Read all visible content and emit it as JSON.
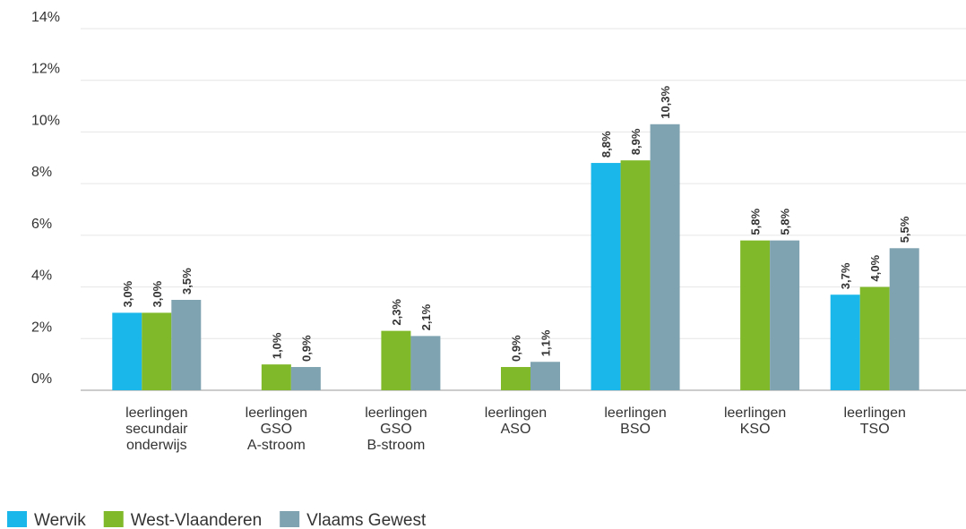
{
  "chart_data": {
    "type": "bar",
    "categories": [
      "leerlingen secundair onderwijs",
      "leerlingen GSO A-stroom",
      "leerlingen GSO B-stroom",
      "leerlingen ASO",
      "leerlingen BSO",
      "leerlingen KSO",
      "leerlingen TSO"
    ],
    "series": [
      {
        "name": "Wervik",
        "color": "#1ab7ea",
        "values": [
          3.0,
          null,
          null,
          null,
          8.8,
          null,
          3.7
        ],
        "value_labels": [
          "3,0%",
          null,
          null,
          null,
          "8,8%",
          null,
          "3,7%"
        ]
      },
      {
        "name": "West-Vlaanderen",
        "color": "#80b929",
        "values": [
          3.0,
          1.0,
          2.3,
          0.9,
          8.9,
          5.8,
          4.0
        ],
        "value_labels": [
          "3,0%",
          "1,0%",
          "2,3%",
          "0,9%",
          "8,9%",
          "5,8%",
          "4,0%"
        ]
      },
      {
        "name": "Vlaams Gewest",
        "color": "#7fa3b0",
        "values": [
          3.5,
          0.9,
          2.1,
          1.1,
          10.3,
          5.8,
          5.5
        ],
        "value_labels": [
          "3,5%",
          "0,9%",
          "2,1%",
          "1,1%",
          "10,3%",
          "5,8%",
          "5,5%"
        ]
      }
    ],
    "ylim": [
      0,
      14
    ],
    "yticks": [
      {
        "value": 0,
        "label": "0%"
      },
      {
        "value": 2,
        "label": "2%"
      },
      {
        "value": 4,
        "label": "4%"
      },
      {
        "value": 6,
        "label": "6%"
      },
      {
        "value": 8,
        "label": "8%"
      },
      {
        "value": 10,
        "label": "10%"
      },
      {
        "value": 12,
        "label": "12%"
      },
      {
        "value": 14,
        "label": "14%"
      }
    ],
    "grid": true,
    "legend": "bottom-left"
  }
}
